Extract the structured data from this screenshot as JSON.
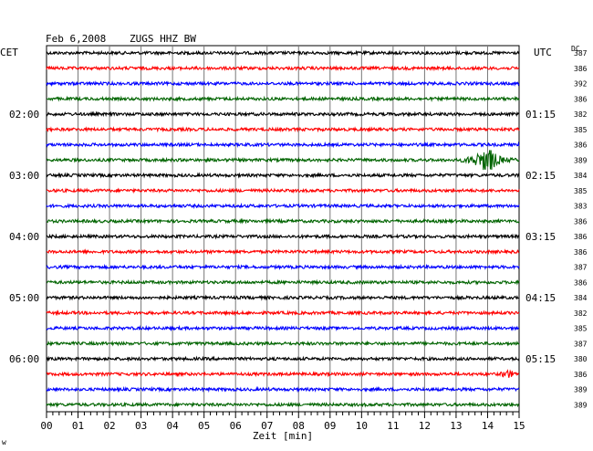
{
  "header": {
    "date": "Feb 6,2008",
    "station": "ZUGS HHZ BW"
  },
  "left_timezone": "CET",
  "right_timezone": "UTC",
  "dc_label": "DC",
  "footer_mark": "w",
  "chart_data": {
    "type": "line",
    "xlabel": "Zeit [min]",
    "xlim": [
      0,
      15
    ],
    "x_ticks": [
      "00",
      "01",
      "02",
      "03",
      "04",
      "05",
      "06",
      "07",
      "08",
      "09",
      "10",
      "11",
      "12",
      "13",
      "14",
      "15"
    ],
    "traces_per_hour": 4,
    "series_colors": [
      "#000000",
      "#ff0000",
      "#0000ff",
      "#006400"
    ],
    "left_time_labels": [
      {
        "row": 4,
        "label": "02:00"
      },
      {
        "row": 8,
        "label": "03:00"
      },
      {
        "row": 12,
        "label": "04:00"
      },
      {
        "row": 16,
        "label": "05:00"
      },
      {
        "row": 20,
        "label": "06:00"
      }
    ],
    "right_time_labels": [
      {
        "row": 4,
        "label": "01:15"
      },
      {
        "row": 8,
        "label": "02:15"
      },
      {
        "row": 12,
        "label": "03:15"
      },
      {
        "row": 16,
        "label": "04:15"
      },
      {
        "row": 20,
        "label": "05:15"
      }
    ],
    "dc_offsets": [
      "387",
      "386",
      "392",
      "386",
      "382",
      "385",
      "386",
      "389",
      "384",
      "385",
      "383",
      "386",
      "386",
      "386",
      "387",
      "386",
      "384",
      "382",
      "385",
      "387",
      "380",
      "386",
      "389",
      "389"
    ],
    "events": [
      {
        "row": 7,
        "start_min": 12.9,
        "peak_min": 14.05,
        "end_min": 15.0,
        "amplitude": 1.0
      },
      {
        "row": 21,
        "start_min": 14.3,
        "peak_min": 14.6,
        "end_min": 14.8,
        "amplitude": 0.3
      }
    ]
  }
}
